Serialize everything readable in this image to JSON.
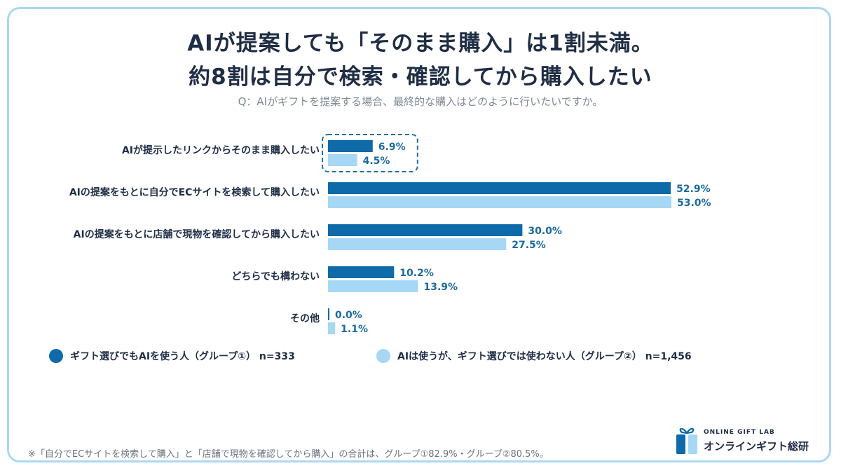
{
  "title_line1": "AIが提案しても「そのまま購入」は1割未満。",
  "title_line2": "約8割は自分で検索・確認してから購入したい",
  "question": "Q：AIがギフトを提案する場合、最終的な購入はどのように行いたいですか。",
  "colors": {
    "group1": "#0e6aa8",
    "group2": "#a6d8f5",
    "highlight_border": "#1f6fa0",
    "value_text": "#1a6aa0"
  },
  "chart_data": {
    "type": "bar",
    "orientation": "horizontal",
    "categories": [
      "AIが提示したリンクからそのまま購入したい",
      "AIの提案をもとに自分でECサイトを検索して購入したい",
      "AIの提案をもとに店舗で現物を確認してから購入したい",
      "どちらでも構わない",
      "その他"
    ],
    "series": [
      {
        "name": "ギフト選びでもAIを使う人（グループ①） n=333",
        "values": [
          6.9,
          52.9,
          30.0,
          10.2,
          0.0
        ],
        "labels": [
          "6.9%",
          "52.9%",
          "30.0%",
          "10.2%",
          "0.0%"
        ]
      },
      {
        "name": "AIは使うが、ギフト選びでは使わない人（グループ②） n=1,456",
        "values": [
          4.5,
          53.0,
          27.5,
          13.9,
          1.1
        ],
        "labels": [
          "4.5%",
          "53.0%",
          "27.5%",
          "13.9%",
          "1.1%"
        ]
      }
    ],
    "xlim": [
      0,
      53
    ],
    "grid": false,
    "legend_position": "bottom-left",
    "highlighted_category": "AIが提示したリンクからそのまま購入したい"
  },
  "legend": {
    "group1": "ギフト選びでもAIを使う人（グループ①） n=333",
    "group2": "AIは使うが、ギフト選びでは使わない人（グループ②） n=1,456"
  },
  "footnote": "※「自分でECサイトを検索して購入」と「店舗で現物を確認してから購入」の合計は、グループ①82.9%・グループ②80.5%。",
  "logo": {
    "sub": "ONLINE GIFT LAB",
    "main": "オンラインギフト総研",
    "icon": "gift-box-icon"
  }
}
